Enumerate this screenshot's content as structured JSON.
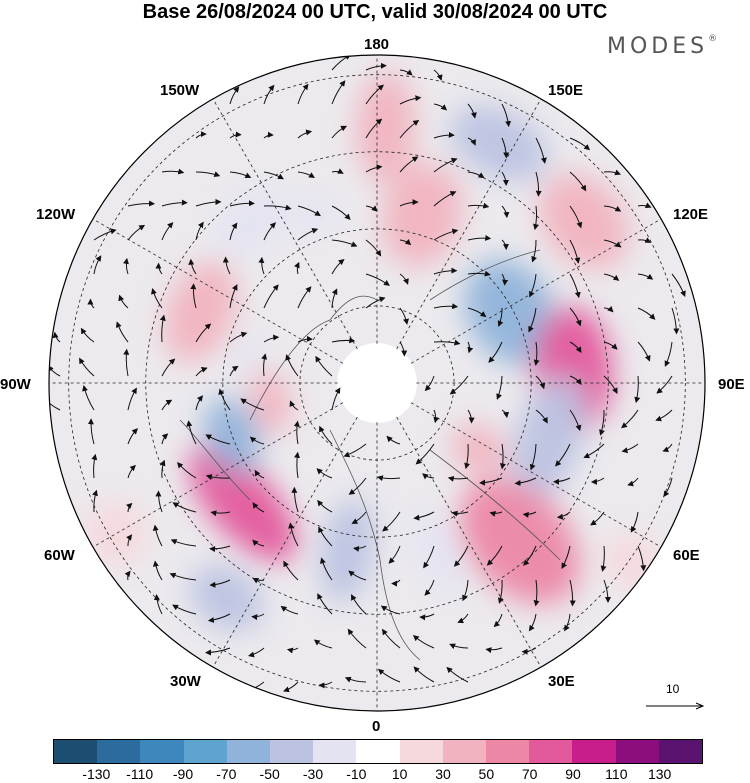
{
  "title": "Base 26/08/2024 00 UTC, valid 30/08/2024 00 UTC",
  "brand": {
    "text": "MODES",
    "mark": "®"
  },
  "longitude_labels": {
    "n180": "180",
    "e150": "150E",
    "e120": "120E",
    "e90": "90E",
    "e60": "60E",
    "e30": "30E",
    "n0": "0",
    "w30": "30W",
    "w60": "60W",
    "w90": "90W",
    "w120": "120W",
    "w150": "150W"
  },
  "reference_vector": {
    "label": "10"
  },
  "colorbar": {
    "colors": [
      "#1c4e72",
      "#2b6b9e",
      "#3e87bd",
      "#5fa3d0",
      "#8fb3da",
      "#bcc3e1",
      "#e4e3f1",
      "#ffffff",
      "#f6d9dd",
      "#f1b3bf",
      "#ec88a6",
      "#e35a9c",
      "#c81e8c",
      "#8c0e7e",
      "#5a1371"
    ],
    "ticks": [
      "-130",
      "-110",
      "-90",
      "-70",
      "-50",
      "-30",
      "-10",
      "10",
      "30",
      "50",
      "70",
      "90",
      "110",
      "130"
    ]
  },
  "anomalies": [
    {
      "lon": 178,
      "r": 0.78,
      "rx": 0.09,
      "ry": 0.17,
      "value": 35
    },
    {
      "lon": 153,
      "r": 0.82,
      "rx": 0.16,
      "ry": 0.1,
      "value": -35
    },
    {
      "lon": 165,
      "r": 0.53,
      "rx": 0.12,
      "ry": 0.16,
      "value": 45
    },
    {
      "lon": 128,
      "r": 0.8,
      "rx": 0.16,
      "ry": 0.12,
      "value": 40
    },
    {
      "lon": 118,
      "r": 0.46,
      "rx": 0.17,
      "ry": 0.13,
      "value": -60
    },
    {
      "lon": 94,
      "r": 0.6,
      "rx": 0.19,
      "ry": 0.12,
      "value": 75
    },
    {
      "lon": 72,
      "r": 0.55,
      "rx": 0.2,
      "ry": 0.1,
      "value": -40
    },
    {
      "lon": 42,
      "r": 0.65,
      "rx": 0.15,
      "ry": 0.22,
      "value": 50
    },
    {
      "lon": 57,
      "r": 0.37,
      "rx": 0.07,
      "ry": 0.09,
      "value": 30
    },
    {
      "lon": 20,
      "r": 0.55,
      "rx": 0.06,
      "ry": 0.14,
      "value": -30
    },
    {
      "lon": 350,
      "r": 0.52,
      "rx": 0.08,
      "ry": 0.16,
      "value": -35
    },
    {
      "lon": 325,
      "r": 0.8,
      "rx": 0.12,
      "ry": 0.09,
      "value": -35
    },
    {
      "lon": 312,
      "r": 0.55,
      "rx": 0.22,
      "ry": 0.1,
      "value": 80
    },
    {
      "lon": 290,
      "r": 0.47,
      "rx": 0.12,
      "ry": 0.08,
      "value": -55
    },
    {
      "lon": 280,
      "r": 0.33,
      "rx": 0.1,
      "ry": 0.06,
      "value": 35
    },
    {
      "lon": 248,
      "r": 0.58,
      "rx": 0.16,
      "ry": 0.1,
      "value": 45
    },
    {
      "lon": 258,
      "r": 0.4,
      "rx": 0.06,
      "ry": 0.04,
      "value": -20
    },
    {
      "lon": 218,
      "r": 0.62,
      "rx": 0.13,
      "ry": 0.08,
      "value": -30
    },
    {
      "lon": 200,
      "r": 0.55,
      "rx": 0.07,
      "ry": 0.05,
      "value": -25
    },
    {
      "lon": 55,
      "r": 0.95,
      "rx": 0.08,
      "ry": 0.1,
      "value": 20
    },
    {
      "lon": 300,
      "r": 0.92,
      "rx": 0.1,
      "ry": 0.1,
      "value": 20
    }
  ]
}
